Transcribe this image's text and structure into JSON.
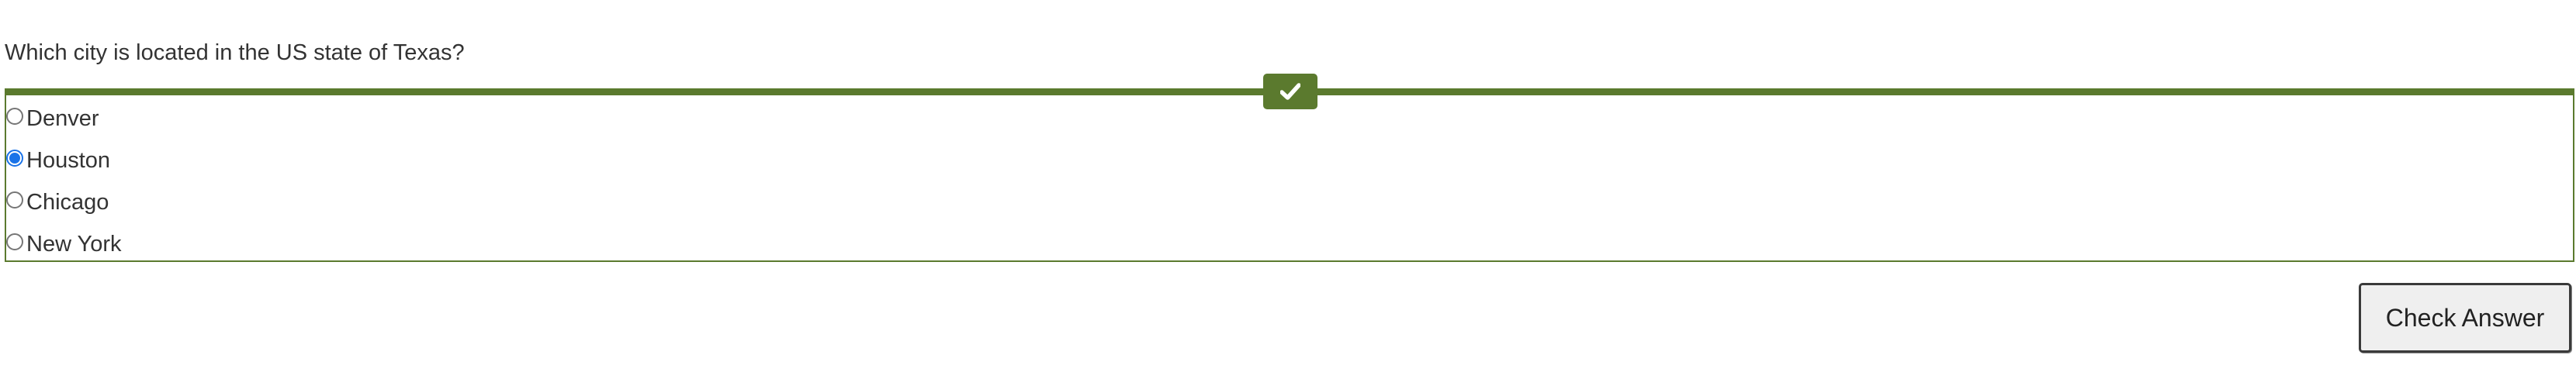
{
  "question": {
    "text": "Which city is located in the US state of Texas?"
  },
  "feedback": {
    "status_icon": "checkmark-icon",
    "accent_color": "#5b7a2e"
  },
  "options": [
    {
      "label": "Denver",
      "selected": false
    },
    {
      "label": "Houston",
      "selected": true
    },
    {
      "label": "Chicago",
      "selected": false
    },
    {
      "label": "New York",
      "selected": false
    }
  ],
  "actions": {
    "check_label": "Check Answer"
  }
}
